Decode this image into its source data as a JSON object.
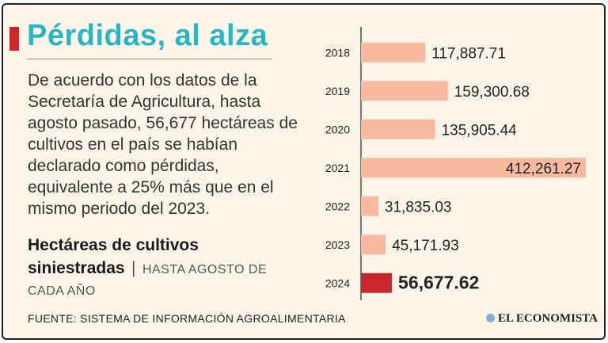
{
  "title": "Pérdidas, al alza",
  "description": "De acuerdo con los datos de la Secretaría de Agricultura, hasta agosto pasado, 56,677 hectáreas de cultivos en el país se habían declarado como pérdidas, equivalente a 25% más que en el mismo periodo del 2023.",
  "subtitle": {
    "main": "Hectáreas de cultivos siniestradas",
    "separator": "|",
    "qualifier": "HASTA AGOSTO DE CADA AÑO"
  },
  "source": "FUENTE: SISTEMA DE INFORMACIÓN AGROALIMENTARIA",
  "brand": "EL ECONOMISTA",
  "colors": {
    "title": "#28b5c4",
    "accent": "#c8252c",
    "bar": "#f8b9a0",
    "bar_highlight": "#c8252c",
    "background": "#fdf5ea"
  },
  "chart_data": {
    "type": "bar",
    "orientation": "horizontal",
    "categories": [
      "2018",
      "2019",
      "2020",
      "2021",
      "2022",
      "2023",
      "2024"
    ],
    "values": [
      117887.71,
      159300.68,
      135905.44,
      412261.27,
      31835.03,
      45171.93,
      56677.62
    ],
    "value_labels": [
      "117,887.71",
      "159,300.68",
      "135,905.44",
      "412,261.27",
      "31,835.03",
      "45,171.93",
      "56,677.62"
    ],
    "highlight": "2024",
    "xlim": [
      0,
      412261.27
    ],
    "grid": false,
    "legend": "none"
  }
}
